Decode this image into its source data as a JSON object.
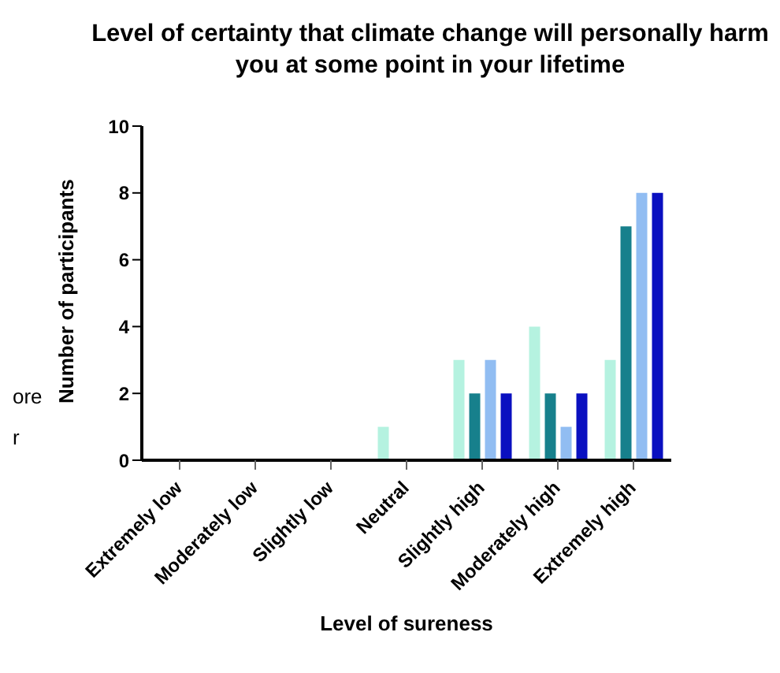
{
  "chart_data": {
    "type": "bar",
    "title": "Level of certainty that climate change will personally harm you at some point in your lifetime",
    "xlabel": "Level of sureness",
    "ylabel": "Number of participants",
    "categories": [
      "Extremely low",
      "Moderately low",
      "Slightly low",
      "Neutral",
      "Slightly high",
      "Moderately high",
      "Extremely high"
    ],
    "series": [
      {
        "color": "#b5f2e0",
        "values": [
          0,
          0,
          0,
          1,
          3,
          4,
          3
        ]
      },
      {
        "color": "#17808c",
        "values": [
          0,
          0,
          0,
          0,
          2,
          2,
          7
        ]
      },
      {
        "color": "#91bdf2",
        "values": [
          0,
          0,
          0,
          0,
          3,
          1,
          8
        ]
      },
      {
        "color": "#0a10c0",
        "values": [
          0,
          0,
          0,
          0,
          2,
          2,
          8
        ]
      }
    ],
    "ylim": [
      0,
      10
    ],
    "yticks": [
      0,
      2,
      4,
      6,
      8,
      10
    ],
    "grid": false,
    "legend": false,
    "annotations": [
      "ore",
      "r"
    ]
  }
}
